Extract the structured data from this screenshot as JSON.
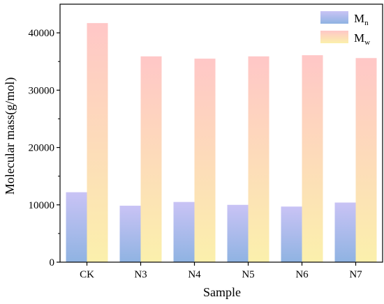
{
  "chart_data": {
    "type": "bar",
    "xlabel": "Sample",
    "ylabel": "Molecular mass(g/mol)",
    "categories": [
      "CK",
      "N3",
      "N4",
      "N5",
      "N6",
      "N7"
    ],
    "ylim": [
      0,
      45000
    ],
    "yticks": [
      0,
      10000,
      20000,
      30000,
      40000
    ],
    "ytick_labels": [
      "0",
      "10000",
      "20000",
      "30000",
      "40000"
    ],
    "grid": false,
    "legend_position": "top-right",
    "series": [
      {
        "name": "Mn",
        "legend_main": "M",
        "legend_sub": "n",
        "values": [
          12200,
          9850,
          10500,
          10000,
          9700,
          10400
        ],
        "gradient_top": "#c9c3f5",
        "gradient_bottom": "#8fb3e2"
      },
      {
        "name": "Mw",
        "legend_main": "M",
        "legend_sub": "w",
        "values": [
          41700,
          35900,
          35500,
          35900,
          36100,
          35600
        ],
        "gradient_top": "#ffc7c7",
        "gradient_bottom": "#fbf0ac"
      }
    ]
  }
}
